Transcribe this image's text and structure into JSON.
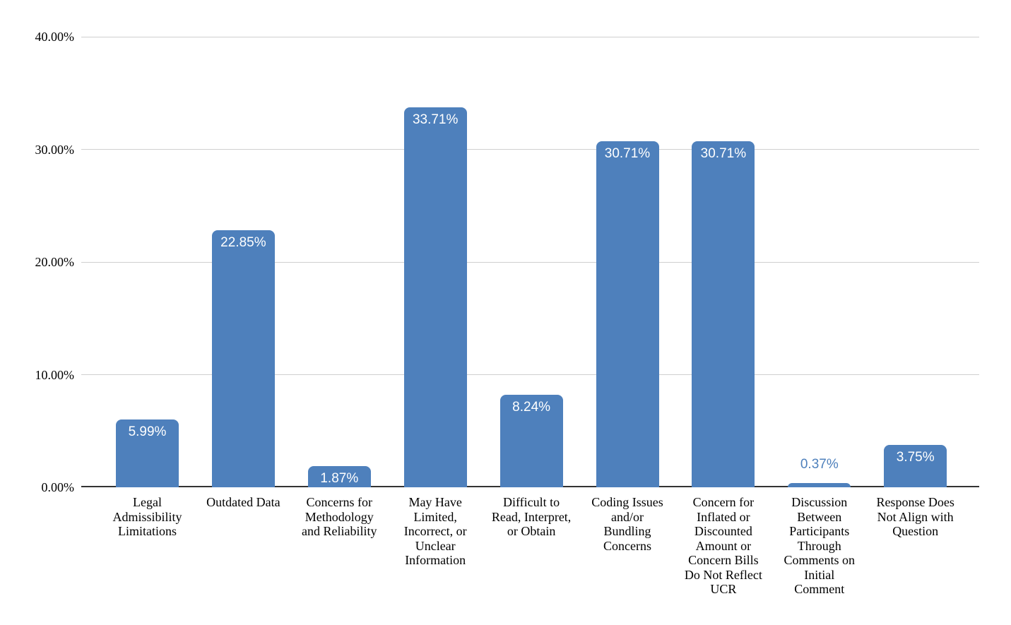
{
  "chart_data": {
    "type": "bar",
    "title": "",
    "xlabel": "",
    "ylabel": "",
    "legend_position": "none",
    "grid": true,
    "ylim": [
      0,
      40
    ],
    "y_ticks": [
      {
        "label": "0.00%",
        "value": 0
      },
      {
        "label": "10.00%",
        "value": 10
      },
      {
        "label": "20.00%",
        "value": 20
      },
      {
        "label": "30.00%",
        "value": 30
      },
      {
        "label": "40.00%",
        "value": 40
      }
    ],
    "categories": [
      "Legal\nAdmissibility\nLimitations",
      "Outdated Data",
      "Concerns for\nMethodology\nand Reliability",
      "May Have\nLimited,\nIncorrect, or\nUnclear\nInformation",
      "Difficult to\nRead, Interpret,\nor Obtain",
      "Coding Issues\nand/or\nBundling\nConcerns",
      "Concern for\nInflated or\nDiscounted\nAmount or\nConcern Bills\nDo Not Reflect\nUCR",
      "Discussion\nBetween\nParticipants\nThrough\nComments on\nInitial\nComment",
      "Response Does\nNot Align with\nQuestion"
    ],
    "values": [
      5.99,
      22.85,
      1.87,
      33.71,
      8.24,
      30.71,
      30.71,
      0.37,
      3.75
    ],
    "value_labels": [
      "5.99%",
      "22.85%",
      "1.87%",
      "33.71%",
      "8.24%",
      "30.71%",
      "30.71%",
      "0.37%",
      "3.75%"
    ],
    "label_placement": [
      "inside",
      "inside",
      "inside",
      "inside",
      "inside",
      "inside",
      "inside",
      "outside",
      "inside"
    ],
    "colors": {
      "bar": "#4e80bc",
      "inside_label": "#ffffff",
      "outside_label": "#4e80bc",
      "gridline": "#cfcfcf",
      "axis_line": "#333333",
      "tick_label": "#000000",
      "category_label": "#000000",
      "background": "#ffffff"
    }
  }
}
